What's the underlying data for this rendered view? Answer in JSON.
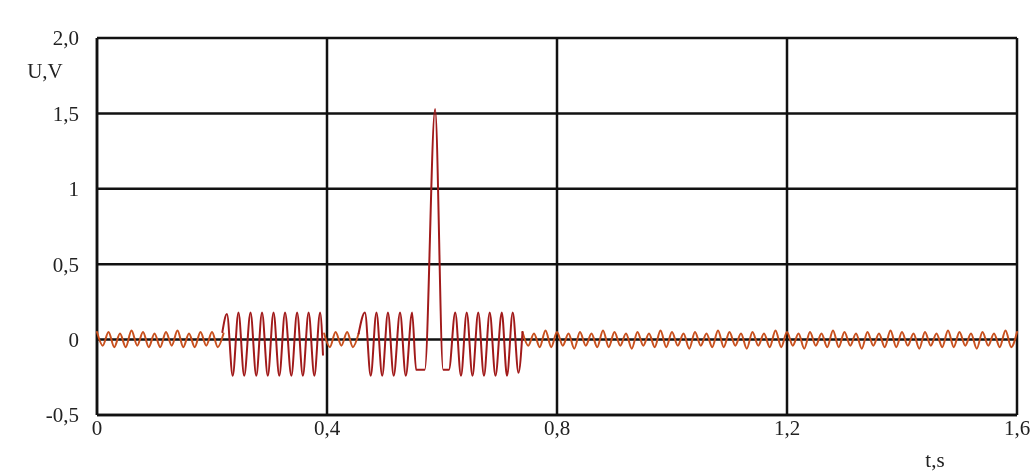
{
  "chart_data": {
    "type": "line",
    "xlabel": "t,s",
    "ylabel": "U,V",
    "xlim": [
      0,
      1.6
    ],
    "ylim": [
      -0.5,
      2.0
    ],
    "xticks": [
      0,
      {
        "value": 0.4,
        "label": "0,4"
      },
      {
        "value": 0.8,
        "label": "0,8"
      },
      {
        "value": 1.2,
        "label": "1,2"
      },
      {
        "value": 1.6,
        "label": "1,6"
      }
    ],
    "yticks": [
      {
        "value": -0.5,
        "label": "-0,5"
      },
      0,
      {
        "value": 0.5,
        "label": "0,5"
      },
      1,
      {
        "value": 1.5,
        "label": "1,5"
      },
      {
        "value": 2.0,
        "label": "2,0"
      }
    ],
    "grid": true,
    "marker": "none",
    "line_style": "solid",
    "series": [
      {
        "color": "#c8501e",
        "x": [
          0,
          0.01,
          0.02,
          0.03,
          0.04,
          0.05,
          0.06,
          0.07,
          0.08,
          0.09,
          0.1,
          0.11,
          0.12,
          0.13,
          0.14,
          0.15,
          0.16,
          0.17,
          0.18,
          0.19,
          0.2,
          0.21,
          0.22,
          0.225,
          0.395,
          0.405,
          0.415,
          0.425,
          0.435,
          0.445,
          0.455,
          0.46,
          0.74,
          0.75,
          0.76,
          0.77,
          0.78,
          0.79,
          0.8,
          0.81,
          0.82,
          0.83,
          0.84,
          0.85,
          0.86,
          0.87,
          0.88,
          0.89,
          0.9,
          0.91,
          0.92,
          0.93,
          0.94,
          0.95,
          0.96,
          0.97,
          0.98,
          0.99,
          1.0,
          1.01,
          1.02,
          1.03,
          1.04,
          1.05,
          1.06,
          1.07,
          1.08,
          1.09,
          1.1,
          1.11,
          1.12,
          1.13,
          1.14,
          1.15,
          1.16,
          1.17,
          1.18,
          1.19,
          1.2,
          1.21,
          1.22,
          1.23,
          1.24,
          1.25,
          1.26,
          1.27,
          1.28,
          1.29,
          1.3,
          1.31,
          1.32,
          1.33,
          1.34,
          1.35,
          1.36,
          1.37,
          1.38,
          1.39,
          1.4,
          1.41,
          1.42,
          1.43,
          1.44,
          1.45,
          1.46,
          1.47,
          1.48,
          1.49,
          1.5,
          1.51,
          1.52,
          1.53,
          1.54,
          1.55,
          1.56,
          1.57,
          1.58,
          1.59,
          1.6
        ],
        "values": [
          0.05,
          -0.04,
          0.05,
          -0.05,
          0.04,
          -0.05,
          0.06,
          -0.04,
          0.05,
          -0.05,
          0.04,
          -0.05,
          0.05,
          -0.04,
          0.06,
          -0.05,
          0.04,
          -0.05,
          0.05,
          -0.04,
          0.05,
          -0.05,
          0.04,
          null,
          0.04,
          -0.05,
          0.05,
          -0.04,
          0.05,
          -0.05,
          0.04,
          null,
          0.05,
          -0.04,
          0.04,
          -0.05,
          0.06,
          -0.05,
          0.05,
          -0.04,
          0.04,
          -0.06,
          0.05,
          -0.04,
          0.04,
          -0.05,
          0.06,
          -0.05,
          0.05,
          -0.04,
          0.04,
          -0.06,
          0.05,
          -0.04,
          0.04,
          -0.05,
          0.06,
          -0.05,
          0.05,
          -0.04,
          0.04,
          -0.06,
          0.05,
          -0.04,
          0.04,
          -0.05,
          0.06,
          -0.05,
          0.05,
          -0.04,
          0.04,
          -0.06,
          0.05,
          -0.04,
          0.04,
          -0.05,
          0.06,
          -0.05,
          0.05,
          -0.04,
          0.04,
          -0.06,
          0.05,
          -0.04,
          0.04,
          -0.05,
          0.06,
          -0.05,
          0.05,
          -0.04,
          0.04,
          -0.06,
          0.05,
          -0.04,
          0.04,
          -0.05,
          0.06,
          -0.05,
          0.05,
          -0.04,
          0.04,
          -0.06,
          0.05,
          -0.04,
          0.04,
          -0.05,
          0.06,
          -0.05,
          0.05,
          -0.04,
          0.04,
          -0.06,
          0.05,
          -0.04,
          0.04,
          -0.05,
          0.06,
          -0.05,
          0.05
        ]
      },
      {
        "color": "#a11a1a",
        "x": [
          0.218,
          0.226,
          0.236,
          0.246,
          0.256,
          0.267,
          0.277,
          0.287,
          0.297,
          0.307,
          0.317,
          0.327,
          0.338,
          0.348,
          0.358,
          0.368,
          0.378,
          0.388,
          0.393,
          0.42,
          0.455,
          0.466,
          0.476,
          0.486,
          0.496,
          0.506,
          0.516,
          0.527,
          0.537,
          0.548,
          0.555,
          0.57,
          0.588,
          0.602,
          0.612,
          0.623,
          0.633,
          0.643,
          0.653,
          0.663,
          0.673,
          0.683,
          0.693,
          0.704,
          0.713,
          0.723,
          0.733,
          0.74
        ],
        "values": [
          0.05,
          0.17,
          -0.24,
          0.18,
          -0.24,
          0.18,
          -0.24,
          0.18,
          -0.24,
          0.18,
          -0.24,
          0.18,
          -0.24,
          0.18,
          -0.24,
          0.18,
          -0.24,
          0.18,
          -0.1,
          null,
          0.04,
          0.18,
          -0.24,
          0.18,
          -0.24,
          0.18,
          -0.24,
          0.18,
          -0.24,
          0.18,
          -0.2,
          -0.2,
          1.53,
          -0.2,
          -0.2,
          0.18,
          -0.24,
          0.18,
          -0.24,
          0.18,
          -0.24,
          0.18,
          -0.24,
          0.18,
          -0.24,
          0.18,
          -0.22,
          0.05
        ]
      }
    ]
  }
}
